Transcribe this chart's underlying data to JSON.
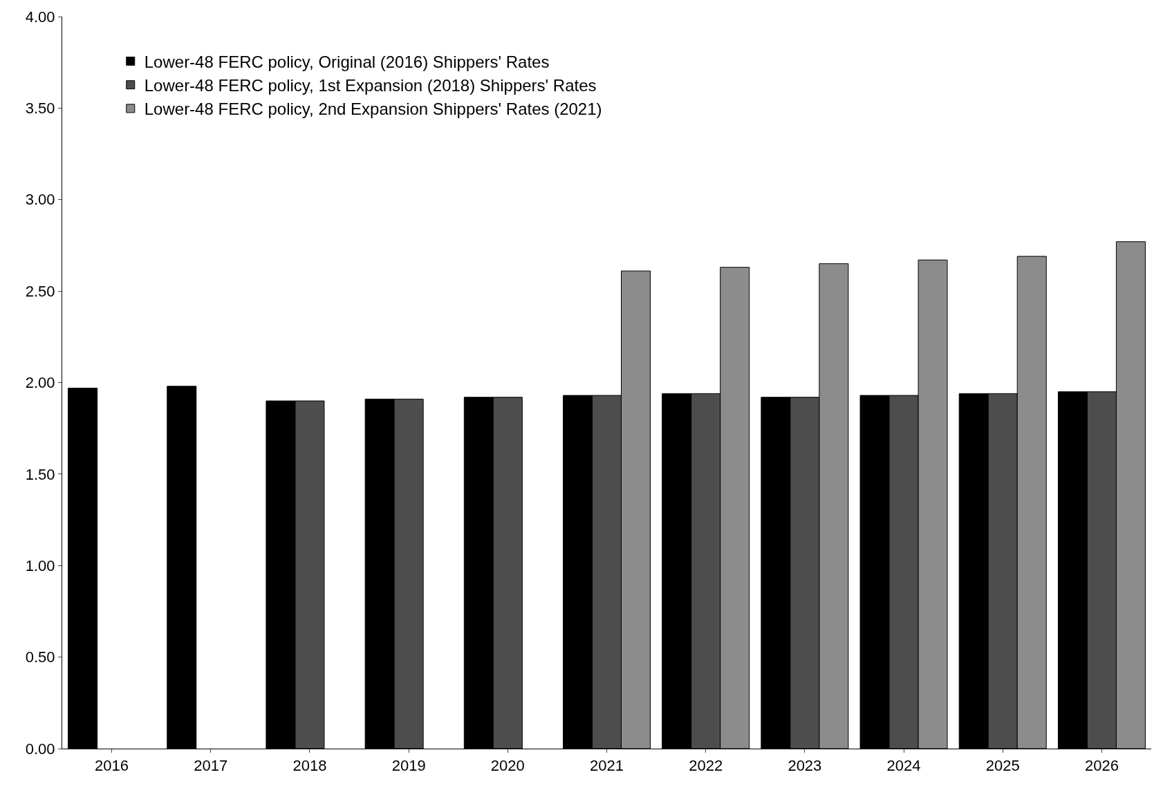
{
  "chart_data": {
    "type": "bar",
    "categories": [
      "2016",
      "2017",
      "2018",
      "2019",
      "2020",
      "2021",
      "2022",
      "2023",
      "2024",
      "2025",
      "2026"
    ],
    "series": [
      {
        "name": "Lower-48 FERC policy, Original (2016) Shippers' Rates",
        "color": "#000000",
        "values": [
          1.97,
          1.98,
          1.9,
          1.91,
          1.92,
          1.93,
          1.94,
          1.92,
          1.93,
          1.94,
          1.95
        ]
      },
      {
        "name": "Lower-48 FERC policy, 1st Expansion (2018) Shippers' Rates",
        "color": "#4d4d4d",
        "values": [
          null,
          null,
          1.9,
          1.91,
          1.92,
          1.93,
          1.94,
          1.92,
          1.93,
          1.94,
          1.95
        ]
      },
      {
        "name": "Lower-48 FERC policy, 2nd Expansion Shippers' Rates (2021)",
        "color": "#8c8c8c",
        "values": [
          null,
          null,
          null,
          null,
          null,
          2.61,
          2.63,
          2.65,
          2.67,
          2.69,
          2.77
        ]
      }
    ],
    "ylim": [
      0,
      4
    ],
    "yticks": [
      {
        "value": 0,
        "label": "0.00"
      },
      {
        "value": 0.5,
        "label": "0.50"
      },
      {
        "value": 1,
        "label": "1.00"
      },
      {
        "value": 1.5,
        "label": "1.50"
      },
      {
        "value": 2,
        "label": "2.00"
      },
      {
        "value": 2.5,
        "label": "2.50"
      },
      {
        "value": 3,
        "label": "3.00"
      },
      {
        "value": 3.5,
        "label": "3.50"
      },
      {
        "value": 4,
        "label": "4.00"
      }
    ],
    "grid": false,
    "legend": "top left"
  }
}
